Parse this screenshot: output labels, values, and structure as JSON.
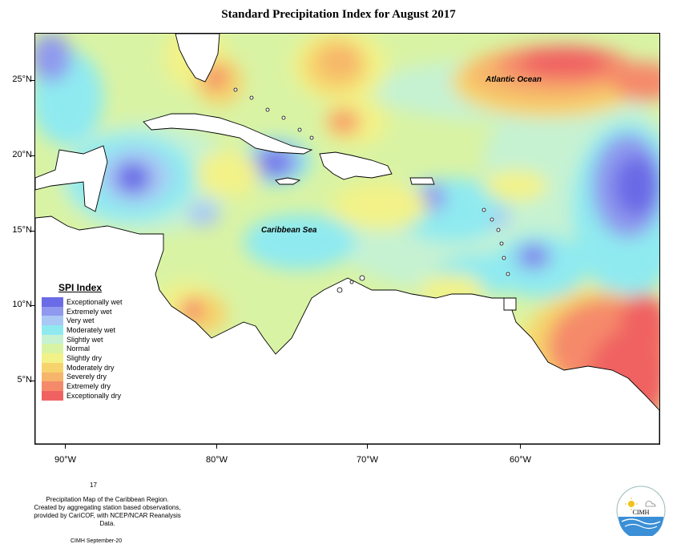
{
  "title": "Standard Precipitation Index for August 2017",
  "map": {
    "labels": {
      "atlantic": "Atlantic Ocean",
      "caribbean": "Caribbean Sea"
    },
    "lat_ticks": [
      "25°N",
      "20°N",
      "15°N",
      "10°N",
      "5°N"
    ],
    "lon_ticks": [
      "90°W",
      "80°W",
      "70°W",
      "60°W"
    ]
  },
  "legend": {
    "title": "SPI Index",
    "items": [
      {
        "label": "Exceptionally wet",
        "color": "#6b6be6"
      },
      {
        "label": "Extremely wet",
        "color": "#8f99ee"
      },
      {
        "label": "Very wet",
        "color": "#a9c9f4"
      },
      {
        "label": "Moderately wet",
        "color": "#8feaf0"
      },
      {
        "label": "Slightly wet",
        "color": "#c6f2d2"
      },
      {
        "label": "Normal",
        "color": "#d9f3a4"
      },
      {
        "label": "Slightly dry",
        "color": "#f2f288"
      },
      {
        "label": "Moderately dry",
        "color": "#f6d36c"
      },
      {
        "label": "Severely dry",
        "color": "#f7b56b"
      },
      {
        "label": "Extremely dry",
        "color": "#f58a6a"
      },
      {
        "label": "Exceptionally dry",
        "color": "#f06262"
      }
    ]
  },
  "footer": {
    "number": "17",
    "line1": "Precipitation Map of the Caribbean Region.",
    "line2": "Created by aggregating station based observations,",
    "line3": "provided by CariCOF, with NCEP/NCAR Reanalysis Data.",
    "credit": "CIMH September-20",
    "logo_text": "CIMH"
  }
}
